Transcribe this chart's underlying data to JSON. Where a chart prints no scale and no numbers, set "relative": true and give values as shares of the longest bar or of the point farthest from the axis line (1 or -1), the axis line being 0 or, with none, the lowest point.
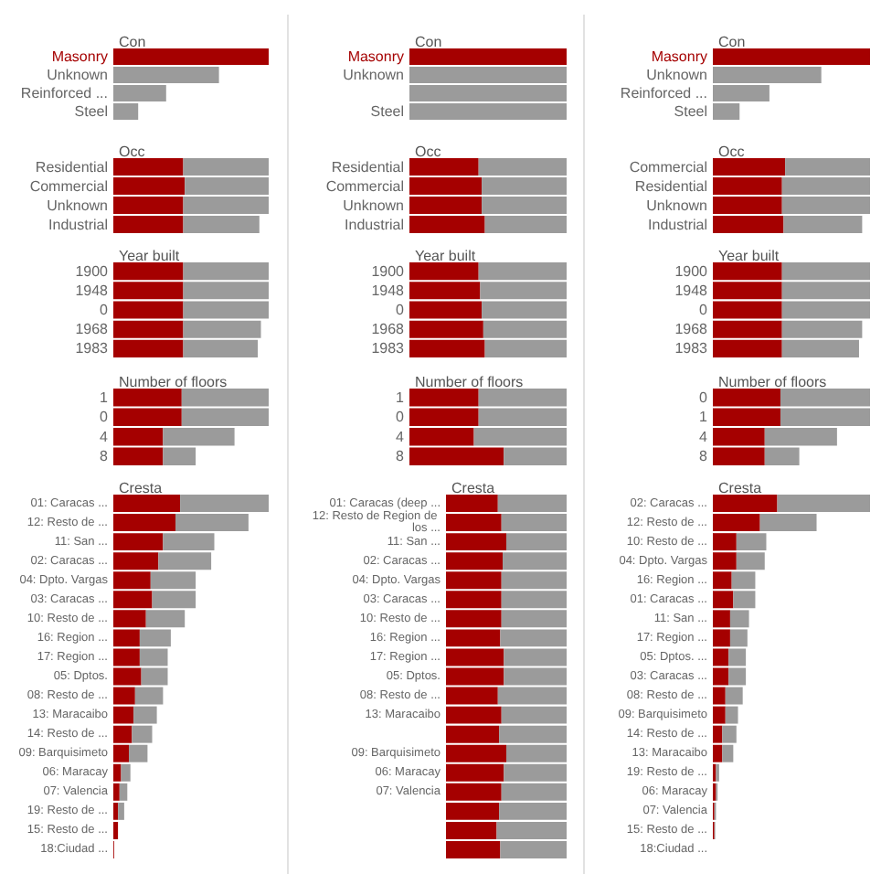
{
  "chart_data": [
    {
      "type": "bar",
      "orientation": "horizontal",
      "stacked": true,
      "relative": true,
      "title": "Con",
      "categories": [
        "Masonry",
        "Unknown",
        "Reinforced ...",
        "Steel"
      ],
      "series": [
        {
          "color": "#a50000",
          "values": [
            1,
            0,
            0,
            0
          ]
        },
        {
          "color": "#9b9b9b",
          "values": [
            0,
            0.68,
            0.34,
            0.16
          ]
        }
      ]
    },
    {
      "type": "bar",
      "orientation": "horizontal",
      "stacked": true,
      "relative": true,
      "title": "Occ",
      "categories": [
        "Residential",
        "Commercial",
        "Unknown",
        "Industrial"
      ],
      "series": [
        {
          "color": "#a50000",
          "values": [
            0.45,
            0.46,
            0.45,
            0.45
          ]
        },
        {
          "color": "#9b9b9b",
          "values": [
            0.55,
            0.54,
            0.55,
            0.49
          ]
        }
      ]
    },
    {
      "type": "bar",
      "orientation": "horizontal",
      "stacked": true,
      "relative": true,
      "title": "Year built",
      "categories": [
        "1900",
        "1948",
        "0",
        "1968",
        "1983"
      ],
      "series": [
        {
          "color": "#a50000",
          "values": [
            0.45,
            0.45,
            0.45,
            0.45,
            0.45
          ]
        },
        {
          "color": "#9b9b9b",
          "values": [
            0.55,
            0.55,
            0.55,
            0.5,
            0.48
          ]
        }
      ]
    },
    {
      "type": "bar",
      "orientation": "horizontal",
      "stacked": true,
      "relative": true,
      "title": "Number of floors",
      "categories": [
        "1",
        "0",
        "4",
        "8"
      ],
      "series": [
        {
          "color": "#a50000",
          "values": [
            0.44,
            0.44,
            0.32,
            0.32
          ]
        },
        {
          "color": "#9b9b9b",
          "values": [
            0.56,
            0.56,
            0.46,
            0.21
          ]
        }
      ]
    },
    {
      "type": "bar",
      "orientation": "horizontal",
      "stacked": true,
      "relative": true,
      "title": "Cresta",
      "categories": [
        "01: Caracas ...",
        "12: Resto de ...",
        "11: San ...",
        "02: Caracas ...",
        "04: Dpto. Vargas",
        "03: Caracas ...",
        "10: Resto de ...",
        "16: Region ...",
        "17: Region ...",
        "05: Dptos.",
        "08: Resto de ...",
        "13: Maracaibo",
        "14: Resto de ...",
        "09: Barquisimeto",
        "06: Maracay",
        "07: Valencia",
        "19: Resto de ...",
        "15: Resto de ...",
        "18:Ciudad ..."
      ],
      "series": [
        {
          "color": "#a50000",
          "values": [
            0.43,
            0.4,
            0.32,
            0.29,
            0.24,
            0.25,
            0.21,
            0.17,
            0.17,
            0.18,
            0.14,
            0.13,
            0.12,
            0.1,
            0.05,
            0.04,
            0.03,
            0.03,
            0.005
          ]
        },
        {
          "color": "#9b9b9b",
          "values": [
            0.57,
            0.47,
            0.33,
            0.34,
            0.29,
            0.28,
            0.25,
            0.2,
            0.18,
            0.17,
            0.18,
            0.15,
            0.13,
            0.12,
            0.06,
            0.05,
            0.04,
            0,
            0
          ]
        }
      ]
    },
    {
      "type": "bar",
      "orientation": "horizontal",
      "stacked": true,
      "relative": true,
      "title": "Con",
      "categories": [
        "Masonry",
        "Unknown",
        null,
        "Steel"
      ],
      "series": [
        {
          "color": "#a50000",
          "values": [
            1,
            0,
            0,
            0
          ]
        },
        {
          "color": "#9b9b9b",
          "values": [
            0,
            1,
            1,
            1
          ]
        }
      ]
    },
    {
      "type": "bar",
      "orientation": "horizontal",
      "stacked": true,
      "relative": true,
      "title": "Occ",
      "categories": [
        "Residential",
        "Commercial",
        "Unknown",
        "Industrial"
      ],
      "series": [
        {
          "color": "#a50000",
          "values": [
            0.44,
            0.46,
            0.46,
            0.48
          ]
        },
        {
          "color": "#9b9b9b",
          "values": [
            0.56,
            0.54,
            0.54,
            0.52
          ]
        }
      ]
    },
    {
      "type": "bar",
      "orientation": "horizontal",
      "stacked": true,
      "relative": true,
      "title": "Year built",
      "categories": [
        "1900",
        "1948",
        "0",
        "1968",
        "1983"
      ],
      "series": [
        {
          "color": "#a50000",
          "values": [
            0.44,
            0.45,
            0.46,
            0.47,
            0.48
          ]
        },
        {
          "color": "#9b9b9b",
          "values": [
            0.56,
            0.55,
            0.54,
            0.53,
            0.52
          ]
        }
      ]
    },
    {
      "type": "bar",
      "orientation": "horizontal",
      "stacked": true,
      "relative": true,
      "title": "Number of floors",
      "categories": [
        "1",
        "0",
        "4",
        "8"
      ],
      "series": [
        {
          "color": "#a50000",
          "values": [
            0.44,
            0.44,
            0.41,
            0.6
          ]
        },
        {
          "color": "#9b9b9b",
          "values": [
            0.56,
            0.56,
            0.59,
            0.4
          ]
        }
      ]
    },
    {
      "type": "bar",
      "orientation": "horizontal",
      "stacked": true,
      "relative": true,
      "title": "Cresta",
      "categories": [
        "01: Caracas (deep ...",
        "12: Resto de Region de los ...",
        "11: San ...",
        "02: Caracas ...",
        "04: Dpto. Vargas",
        "03: Caracas ...",
        "10: Resto de ...",
        "16: Region ...",
        "17: Region ...",
        "05: Dptos.",
        "08: Resto de ...",
        "13: Maracaibo",
        null,
        "09: Barquisimeto",
        "06: Maracay",
        "07: Valencia",
        null,
        null,
        null
      ],
      "series": [
        {
          "color": "#a50000",
          "values": [
            0.43,
            0.46,
            0.5,
            0.47,
            0.46,
            0.46,
            0.46,
            0.45,
            0.48,
            0.48,
            0.43,
            0.46,
            0.44,
            0.5,
            0.48,
            0.46,
            0.44,
            0.42,
            0.45
          ]
        },
        {
          "color": "#9b9b9b",
          "values": [
            0.57,
            0.54,
            0.5,
            0.53,
            0.54,
            0.54,
            0.54,
            0.55,
            0.52,
            0.52,
            0.57,
            0.54,
            0.56,
            0.5,
            0.52,
            0.54,
            0.56,
            0.58,
            0.55
          ]
        }
      ]
    },
    {
      "type": "bar",
      "orientation": "horizontal",
      "stacked": true,
      "relative": true,
      "title": "Con",
      "categories": [
        "Masonry",
        "Unknown",
        "Reinforced ...",
        "Steel"
      ],
      "series": [
        {
          "color": "#a50000",
          "values": [
            1,
            0,
            0,
            0
          ]
        },
        {
          "color": "#9b9b9b",
          "values": [
            0,
            0.69,
            0.36,
            0.17
          ]
        }
      ]
    },
    {
      "type": "bar",
      "orientation": "horizontal",
      "stacked": true,
      "relative": true,
      "title": "Occ",
      "categories": [
        "Commercial",
        "Residential",
        "Unknown",
        "Industrial"
      ],
      "series": [
        {
          "color": "#a50000",
          "values": [
            0.46,
            0.44,
            0.44,
            0.45
          ]
        },
        {
          "color": "#9b9b9b",
          "values": [
            0.54,
            0.56,
            0.56,
            0.5
          ]
        }
      ]
    },
    {
      "type": "bar",
      "orientation": "horizontal",
      "stacked": true,
      "relative": true,
      "title": "Year built",
      "categories": [
        "1900",
        "1948",
        "0",
        "1968",
        "1983"
      ],
      "series": [
        {
          "color": "#a50000",
          "values": [
            0.44,
            0.44,
            0.44,
            0.44,
            0.44
          ]
        },
        {
          "color": "#9b9b9b",
          "values": [
            0.56,
            0.56,
            0.56,
            0.51,
            0.49
          ]
        }
      ]
    },
    {
      "type": "bar",
      "orientation": "horizontal",
      "stacked": true,
      "relative": true,
      "title": "Number of floors",
      "categories": [
        "0",
        "1",
        "4",
        "8"
      ],
      "series": [
        {
          "color": "#a50000",
          "values": [
            0.43,
            0.43,
            0.33,
            0.33
          ]
        },
        {
          "color": "#9b9b9b",
          "values": [
            0.57,
            0.57,
            0.46,
            0.22
          ]
        }
      ]
    },
    {
      "type": "bar",
      "orientation": "horizontal",
      "stacked": true,
      "relative": true,
      "title": "Cresta",
      "categories": [
        "02: Caracas ...",
        "12: Resto de ...",
        "10: Resto de ...",
        "04: Dpto. Vargas",
        "16: Region ...",
        "01: Caracas ...",
        "11: San ...",
        "17: Region ...",
        "05: Dptos. ...",
        "03: Caracas ...",
        "08: Resto de ...",
        "09: Barquisimeto",
        "14: Resto de ...",
        "13: Maracaibo",
        "19: Resto de ...",
        "06: Maracay",
        "07: Valencia",
        "15: Resto de ...",
        "18:Ciudad ..."
      ],
      "series": [
        {
          "color": "#a50000",
          "values": [
            0.41,
            0.3,
            0.15,
            0.15,
            0.12,
            0.13,
            0.11,
            0.11,
            0.1,
            0.1,
            0.08,
            0.08,
            0.06,
            0.06,
            0.02,
            0.02,
            0.01,
            0.01,
            0
          ]
        },
        {
          "color": "#9b9b9b",
          "values": [
            0.59,
            0.36,
            0.19,
            0.18,
            0.15,
            0.14,
            0.12,
            0.11,
            0.11,
            0.11,
            0.11,
            0.08,
            0.09,
            0.07,
            0.02,
            0.01,
            0.01,
            0.005,
            0
          ]
        }
      ]
    }
  ]
}
